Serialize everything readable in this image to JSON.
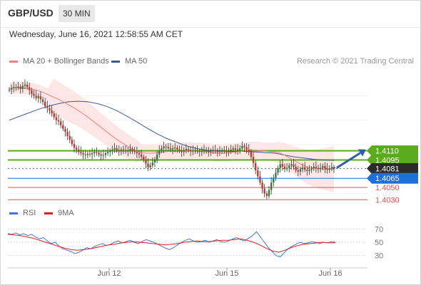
{
  "header": {
    "pair": "GBP/USD",
    "timeframe": "30 MIN",
    "datetime": "Wednesday, June 16, 2021 12:58:55 AM CET"
  },
  "legend": {
    "ma20_label": "MA 20 + Bollinger Bands",
    "ma50_label": "MA 50",
    "credit": "Research © 2021 Trading Central",
    "rsi_label": "RSI",
    "ma9_label": "9MA"
  },
  "colors": {
    "price_up": "#2f7d3a",
    "price_down": "#c0392b",
    "ma20": "#f08080",
    "bollinger_fill": "#fde2e2",
    "ma50": "#3d5a98",
    "resistance": "#5aab1e",
    "current": "#2b2b2b",
    "pivot": "#1f6fd8",
    "support": "#e05252",
    "arrow": "#2d5fa8",
    "rsi": "#4a74d0",
    "rsi_ma": "#e02020"
  },
  "chart_data": [
    {
      "type": "candlestick",
      "title": "",
      "y_range": [
        1.4028,
        1.424
      ],
      "x_ticks": [
        "Jun 12",
        "Jun 15",
        "Jun 16"
      ],
      "series": [
        {
          "name": "GBP/USD",
          "values": [
            1.421,
            1.4212,
            1.4214,
            1.4213,
            1.4215,
            1.4211,
            1.4216,
            1.4218,
            1.4214,
            1.4209,
            1.4203,
            1.42,
            1.4196,
            1.4199,
            1.4194,
            1.419,
            1.4183,
            1.418,
            1.4176,
            1.4171,
            1.4165,
            1.416,
            1.4158,
            1.4152,
            1.4146,
            1.4141,
            1.4134,
            1.4128,
            1.4121,
            1.4115,
            1.4112,
            1.4108,
            1.4106,
            1.4104,
            1.4103,
            1.4105,
            1.4104,
            1.4106,
            1.4108,
            1.4107,
            1.4104,
            1.4102,
            1.4103,
            1.4106,
            1.4108,
            1.411,
            1.4112,
            1.4114,
            1.4111,
            1.4109,
            1.4112,
            1.411,
            1.4109,
            1.4111,
            1.4113,
            1.411,
            1.4108,
            1.4106,
            1.4104,
            1.41,
            1.4095,
            1.4089,
            1.4083,
            1.4086,
            1.4091,
            1.4096,
            1.4104,
            1.411,
            1.4114,
            1.4117,
            1.4116,
            1.4114,
            1.4112,
            1.4114,
            1.4115,
            1.4112,
            1.411,
            1.4108,
            1.4111,
            1.4113,
            1.4111,
            1.4109,
            1.411,
            1.4111,
            1.4109,
            1.4108,
            1.411,
            1.4111,
            1.4109,
            1.4108,
            1.411,
            1.4111,
            1.4109,
            1.4108,
            1.411,
            1.4111,
            1.4109,
            1.4108,
            1.411,
            1.4112,
            1.4114,
            1.4112,
            1.411,
            1.4114,
            1.4118,
            1.4116,
            1.4112,
            1.4108,
            1.41,
            1.409,
            1.4078,
            1.4068,
            1.4058,
            1.4048,
            1.404,
            1.4036,
            1.4046,
            1.4058,
            1.4066,
            1.4074,
            1.4082,
            1.4088,
            1.4084,
            1.408,
            1.4082,
            1.4086,
            1.4088,
            1.4084,
            1.4078,
            1.4076,
            1.408,
            1.4083,
            1.4079,
            1.4077,
            1.4079,
            1.4081,
            1.4084,
            1.4082,
            1.408,
            1.4082,
            1.4085,
            1.4081,
            1.4079,
            1.4081,
            1.4083,
            1.4081
          ]
        },
        {
          "name": "MA 20",
          "values": [
            1.4212,
            1.4213,
            1.4213,
            1.4212,
            1.4211,
            1.4209,
            1.4206,
            1.4202,
            1.4198,
            1.4194,
            1.4189,
            1.4184,
            1.4179,
            1.4173,
            1.4167,
            1.416,
            1.4153,
            1.4146,
            1.4139,
            1.4132,
            1.4126,
            1.412,
            1.4115,
            1.411,
            1.4107,
            1.4106,
            1.4106,
            1.4107,
            1.4108,
            1.4109,
            1.4109,
            1.4109,
            1.411,
            1.411,
            1.4109,
            1.4109,
            1.4108,
            1.4107,
            1.4106,
            1.4106,
            1.4107,
            1.4108,
            1.4109,
            1.411,
            1.4111,
            1.4111,
            1.411,
            1.4109,
            1.4108,
            1.4107,
            1.4103,
            1.4098,
            1.4093,
            1.4088,
            1.4084,
            1.4082,
            1.4081,
            1.408,
            1.408,
            1.408
          ]
        },
        {
          "name": "MA 50",
          "values": [
            1.416,
            1.4166,
            1.4172,
            1.4178,
            1.4183,
            1.4187,
            1.419,
            1.4191,
            1.419,
            1.4187,
            1.4182,
            1.4175,
            1.4166,
            1.4157,
            1.4147,
            1.4138,
            1.413,
            1.4124,
            1.4118,
            1.4114,
            1.4111,
            1.411,
            1.4109,
            1.4109,
            1.4109,
            1.4108,
            1.4107,
            1.4106,
            1.4103,
            1.41,
            1.4098,
            1.4096,
            1.4095,
            1.4094
          ]
        }
      ]
    },
    {
      "type": "line",
      "title": "",
      "y_ticks": [
        70,
        50,
        30
      ],
      "y_range": [
        20,
        80
      ],
      "series": [
        {
          "name": "RSI",
          "values": [
            63,
            62,
            64,
            61,
            63,
            60,
            62,
            58,
            55,
            57,
            52,
            48,
            50,
            44,
            40,
            38,
            36,
            33,
            35,
            38,
            42,
            40,
            44,
            46,
            48,
            45,
            47,
            50,
            52,
            49,
            51,
            53,
            50,
            48,
            51,
            54,
            52,
            50,
            47,
            44,
            41,
            39,
            42,
            46,
            50,
            53,
            55,
            52,
            50,
            51,
            53,
            50,
            52,
            54,
            51,
            50,
            52,
            55,
            57,
            54,
            52,
            56,
            60,
            66,
            58,
            50,
            42,
            36,
            30,
            28,
            34,
            40,
            44,
            47,
            50,
            48,
            49,
            51,
            50,
            48,
            50,
            49,
            51,
            50
          ]
        },
        {
          "name": "9MA",
          "values": [
            62,
            61,
            60,
            58,
            56,
            53,
            50,
            47,
            44,
            41,
            39,
            38,
            39,
            40,
            42,
            44,
            46,
            47,
            49,
            50,
            51,
            50,
            49,
            48,
            47,
            46,
            47,
            48,
            50,
            51,
            52,
            51,
            51,
            52,
            53,
            53,
            54,
            55,
            53,
            50,
            46,
            41,
            37,
            35,
            38,
            42,
            45,
            47,
            48,
            49,
            50,
            49,
            49
          ]
        }
      ]
    }
  ],
  "levels": [
    {
      "value": "1.4110",
      "role": "resistance"
    },
    {
      "value": "1.4095",
      "role": "resistance"
    },
    {
      "value": "1.4081",
      "role": "current"
    },
    {
      "value": "1.4065",
      "role": "pivot"
    },
    {
      "value": "1.4050",
      "role": "support"
    },
    {
      "value": "1.4030",
      "role": "support"
    }
  ]
}
